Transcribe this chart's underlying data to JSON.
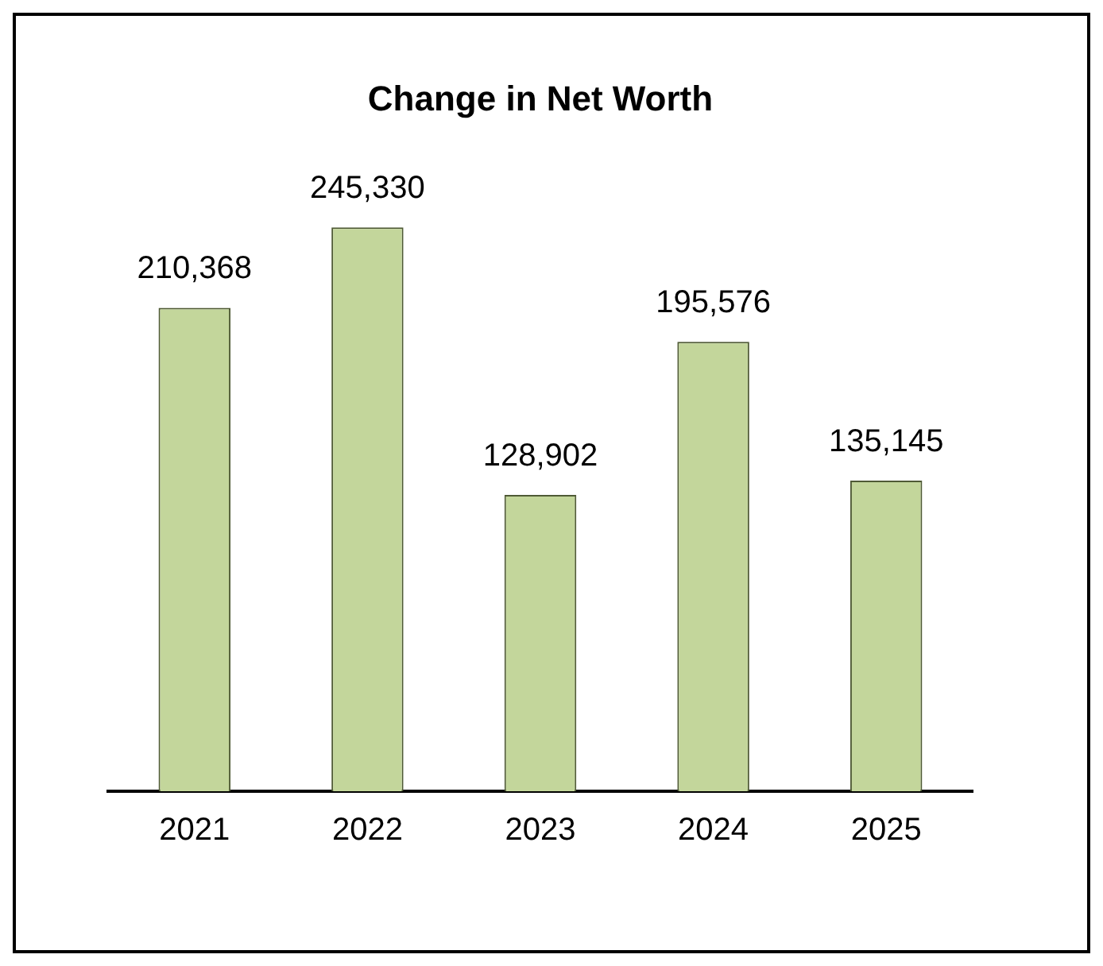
{
  "chart_data": {
    "type": "bar",
    "title": "Change in Net Worth",
    "categories": [
      "2021",
      "2022",
      "2023",
      "2024",
      "2025"
    ],
    "values": [
      210368,
      245330,
      128902,
      195576,
      135145
    ],
    "value_labels": [
      "210,368",
      "245,330",
      "128,902",
      "195,576",
      "135,145"
    ],
    "color": "#c3d69b",
    "grid": false,
    "legend": false
  }
}
